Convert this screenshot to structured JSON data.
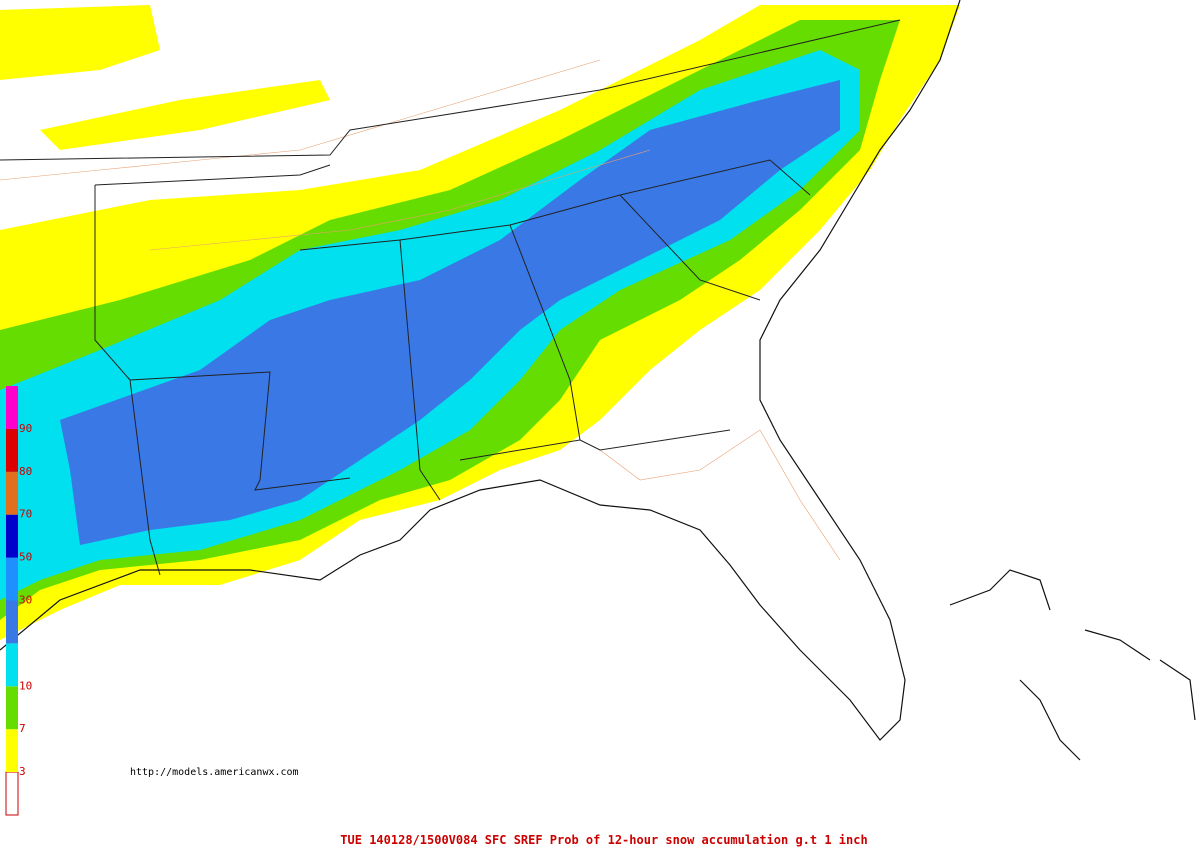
{
  "footer": "TUE 140128/1500V084  SFC SREF Prob of 12-hour snow accumulation g.t 1 inch",
  "source": "http://models.americanwx.com",
  "legend": {
    "colors": [
      "#ffffff",
      "#ffff00",
      "#66dd00",
      "#00e0ee",
      "#3a78e6",
      "#1e90ff",
      "#0000cc",
      "#e07020",
      "#dd0000",
      "#ff00cc"
    ],
    "labels": [
      3,
      7,
      10,
      30,
      50,
      70,
      80,
      90
    ]
  }
}
